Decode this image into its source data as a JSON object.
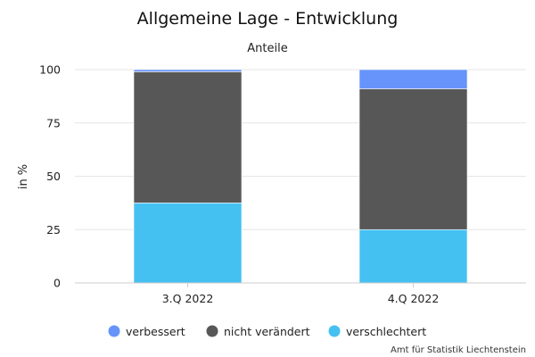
{
  "chart_data": {
    "type": "bar",
    "stacked": true,
    "title": "Allgemeine Lage - Entwicklung",
    "subtitle": "Anteile",
    "xlabel": "",
    "ylabel": "in %",
    "ylim": [
      0,
      100
    ],
    "yticks": [
      0,
      25,
      50,
      75,
      100
    ],
    "grid": true,
    "legend_position": "bottom",
    "categories": [
      "3.Q 2022",
      "4.Q 2022"
    ],
    "series": [
      {
        "name": "verschlechtert",
        "color": "#45c1f1",
        "values": [
          37.5,
          25
        ]
      },
      {
        "name": "nicht verändert",
        "color": "#575757",
        "values": [
          61.5,
          66
        ]
      },
      {
        "name": "verbessert",
        "color": "#6694fb",
        "values": [
          1,
          9
        ]
      }
    ],
    "legend_order": [
      "verbessert",
      "nicht verändert",
      "verschlechtert"
    ]
  },
  "source": "Amt für Statistik Liechtenstein"
}
